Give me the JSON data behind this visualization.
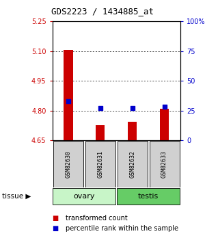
{
  "title": "GDS2223 / 1434885_at",
  "samples": [
    "GSM82630",
    "GSM82631",
    "GSM82632",
    "GSM82633"
  ],
  "tissue_groups": [
    {
      "label": "ovary",
      "n_samples": 2,
      "color": "#c8f5c8"
    },
    {
      "label": "testis",
      "n_samples": 2,
      "color": "#66cc66"
    }
  ],
  "transformed_counts": [
    5.105,
    4.725,
    4.745,
    4.808
  ],
  "percentile_ranks_pct": [
    33,
    27,
    27,
    28
  ],
  "ylim_left": [
    4.65,
    5.25
  ],
  "ylim_right": [
    0,
    100
  ],
  "left_ticks": [
    4.65,
    4.8,
    4.95,
    5.1,
    5.25
  ],
  "right_ticks": [
    0,
    25,
    50,
    75,
    100
  ],
  "bar_bottom": 4.65,
  "bar_color": "#cc0000",
  "dot_color": "#0000cc",
  "legend_bar_label": "transformed count",
  "legend_dot_label": "percentile rank within the sample",
  "left_tick_color": "#cc0000",
  "right_tick_color": "#0000cc",
  "sample_box_color": "#d0d0d0",
  "title_fontsize": 9,
  "tick_fontsize": 7,
  "sample_fontsize": 6,
  "tissue_fontsize": 8,
  "legend_fontsize": 7
}
